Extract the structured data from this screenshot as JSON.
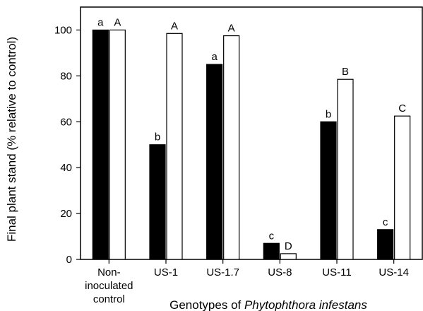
{
  "chart_data": {
    "type": "bar",
    "categories": [
      [
        "Non-",
        "inoculated",
        "control"
      ],
      [
        "US-1"
      ],
      [
        "US-1.7"
      ],
      [
        "US-8"
      ],
      [
        "US-11"
      ],
      [
        "US-14"
      ]
    ],
    "series": [
      {
        "color": "#000000",
        "values": [
          100,
          50,
          85,
          7,
          60,
          13
        ],
        "labels": [
          "a",
          "b",
          "a",
          "c",
          "b",
          "c"
        ]
      },
      {
        "color": "#ffffff",
        "values": [
          100,
          98.5,
          97.5,
          2.5,
          78.5,
          62.5
        ],
        "labels": [
          "A",
          "A",
          "A",
          "D",
          "B",
          "C"
        ]
      }
    ],
    "xlabel_prefix": "Genotypes of ",
    "xlabel_italic": "Phytophthora infestans",
    "ylabel": "Final plant stand (% relative to control)",
    "ylim": [
      0,
      110
    ],
    "yticks": [
      0,
      20,
      40,
      60,
      80,
      100
    ],
    "grid": false,
    "legend": "none"
  }
}
